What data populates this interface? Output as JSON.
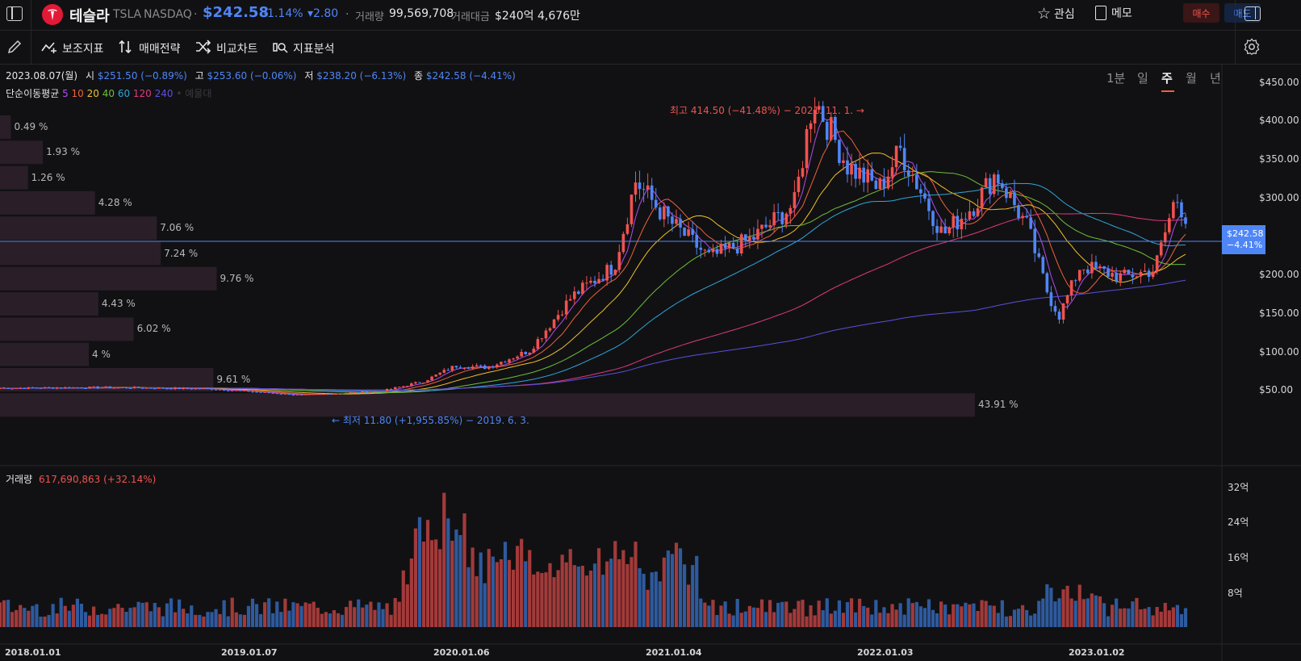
{
  "header": {
    "stock_name": "테슬라",
    "ticker": "TSLA",
    "exchange": "NASDAQ",
    "separator": "·",
    "price": "$242.58",
    "change_pct": "-1.14%",
    "change_abs": "▾2.80",
    "volume_label": "거래량",
    "volume": "99,569,708",
    "amount_label": "거래대금",
    "amount": "$240억 4,676만",
    "watch_label": "관심",
    "memo_label": "메모",
    "buy_label": "매수",
    "sell_label": "매도"
  },
  "toolbar": {
    "items": [
      "보조지표",
      "매매전략",
      "비교차트",
      "지표분석"
    ],
    "periods": [
      "1분",
      "일",
      "주",
      "월",
      "년"
    ],
    "active_period": "주"
  },
  "candle_info": {
    "date": "2023.08.07(월)",
    "open_label": "시",
    "open": "$251.50 (−0.89%)",
    "high_label": "고",
    "high": "$253.60 (−0.06%)",
    "low_label": "저",
    "low": "$238.20 (−6.13%)",
    "close_label": "종",
    "close": "$242.58 (−4.41%)"
  },
  "ma_legend": {
    "label": "단순이동평균",
    "periods": [
      {
        "p": "5",
        "color": "#b04cf0"
      },
      {
        "p": "10",
        "color": "#f0603b"
      },
      {
        "p": "20",
        "color": "#f0c02a"
      },
      {
        "p": "40",
        "color": "#6fbf3a"
      },
      {
        "p": "60",
        "color": "#2fa6d9"
      },
      {
        "p": "120",
        "color": "#e0397f"
      },
      {
        "p": "240",
        "color": "#5b4fe0"
      }
    ],
    "extra": "• 예물대"
  },
  "annotations": {
    "high": "최고 414.50 (−41.48%) − 2021. 11. 1. →",
    "low": "← 최저 11.80 (+1,955.85%) − 2019. 6. 3."
  },
  "price_axis": [
    "$450.00",
    "$400.00",
    "$350.00",
    "$300.00",
    "$200.00",
    "$150.00",
    "$100.00",
    "$50.00"
  ],
  "current_price_tag": {
    "price": "$242.58",
    "pct": "−4.41%"
  },
  "volume_profile": [
    "0.49 %",
    "1.93 %",
    "1.26 %",
    "4.28 %",
    "7.06 %",
    "7.24 %",
    "9.76 %",
    "4.43 %",
    "6.02 %",
    "4 %",
    "9.61 %",
    "43.91 %"
  ],
  "volume_info": {
    "label": "거래량",
    "value": "617,690,863 (+32.14%)"
  },
  "volume_axis": [
    "32억",
    "24억",
    "16억",
    "8억"
  ],
  "x_axis": [
    "2018.01.01",
    "2019.01.07",
    "2020.01.06",
    "2021.01.04",
    "2022.01.03",
    "2023.01.02"
  ],
  "colors": {
    "up": "#f0524f",
    "down": "#4f86f7",
    "background": "#111113",
    "price_line": "#4f86f7"
  },
  "chart_data": {
    "type": "candlestick",
    "frequency": "weekly",
    "ylim": [
      0,
      470
    ],
    "approx_close_series": [
      {
        "x": "2018.01",
        "y": 21
      },
      {
        "x": "2019.01",
        "y": 20
      },
      {
        "x": "2019.06",
        "y": 12
      },
      {
        "x": "2020.01",
        "y": 35
      },
      {
        "x": "2020.06",
        "y": 65
      },
      {
        "x": "2020.09",
        "y": 140
      },
      {
        "x": "2021.01",
        "y": 290
      },
      {
        "x": "2021.05",
        "y": 200
      },
      {
        "x": "2021.11",
        "y": 400
      },
      {
        "x": "2022.01",
        "y": 310
      },
      {
        "x": "2022.04",
        "y": 330
      },
      {
        "x": "2022.06",
        "y": 220
      },
      {
        "x": "2022.09",
        "y": 300
      },
      {
        "x": "2022.12",
        "y": 120
      },
      {
        "x": "2023.01",
        "y": 115
      },
      {
        "x": "2023.04",
        "y": 165
      },
      {
        "x": "2023.07",
        "y": 275
      },
      {
        "x": "2023.08",
        "y": 242.58
      }
    ],
    "volume_max": "32억"
  }
}
